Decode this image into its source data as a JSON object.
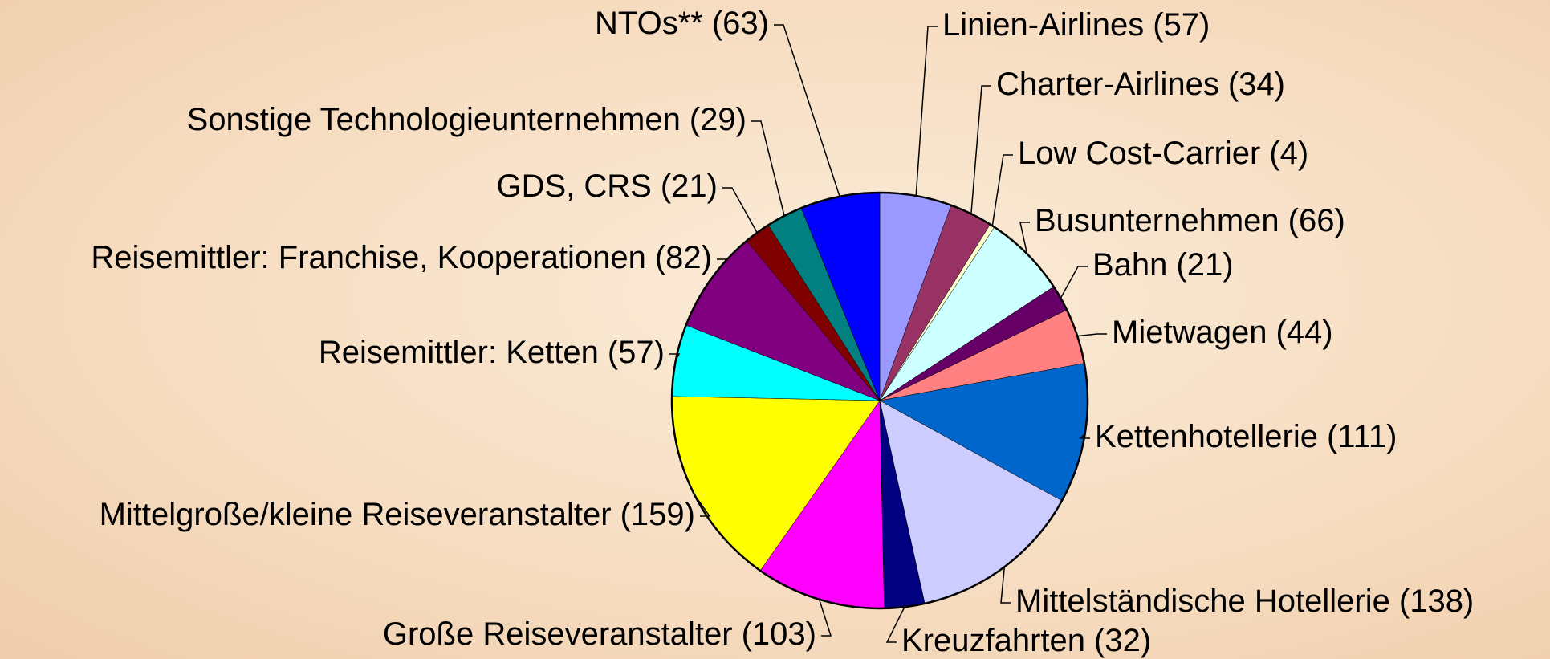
{
  "chart_data": {
    "type": "pie",
    "categories": [
      "Linien-Airlines",
      "Charter-Airlines",
      "Low Cost-Carrier",
      "Busunternehmen",
      "Bahn",
      "Mietwagen",
      "Kettenhotellerie",
      "Mittelständische Hotellerie",
      "Kreuzfahrten",
      "Große Reiseveranstalter",
      "Mittelgroße/kleine Reiseveranstalter",
      "Reisemittler: Ketten",
      "Reisemittler: Franchise, Kooperationen",
      "GDS, CRS",
      "Sonstige Technologieunternehmen",
      "NTOs**"
    ],
    "values": [
      57,
      34,
      4,
      66,
      21,
      44,
      111,
      138,
      32,
      103,
      159,
      57,
      82,
      21,
      29,
      63
    ],
    "value_labels": [
      "(57)",
      "(34)",
      "(4)",
      "(66)",
      "(21)",
      "(44)",
      "(111)",
      "(138)",
      "(32)",
      "(103)",
      "(159)",
      "(57)",
      "(82)",
      "(21)",
      "(29)",
      "(63)"
    ],
    "colors": [
      "#9999ff",
      "#993366",
      "#ffffcc",
      "#ccffff",
      "#660066",
      "#ff8080",
      "#0066cc",
      "#ccccff",
      "#000080",
      "#ff00ff",
      "#ffff00",
      "#00ffff",
      "#800080",
      "#800000",
      "#008080",
      "#0000ff"
    ]
  }
}
